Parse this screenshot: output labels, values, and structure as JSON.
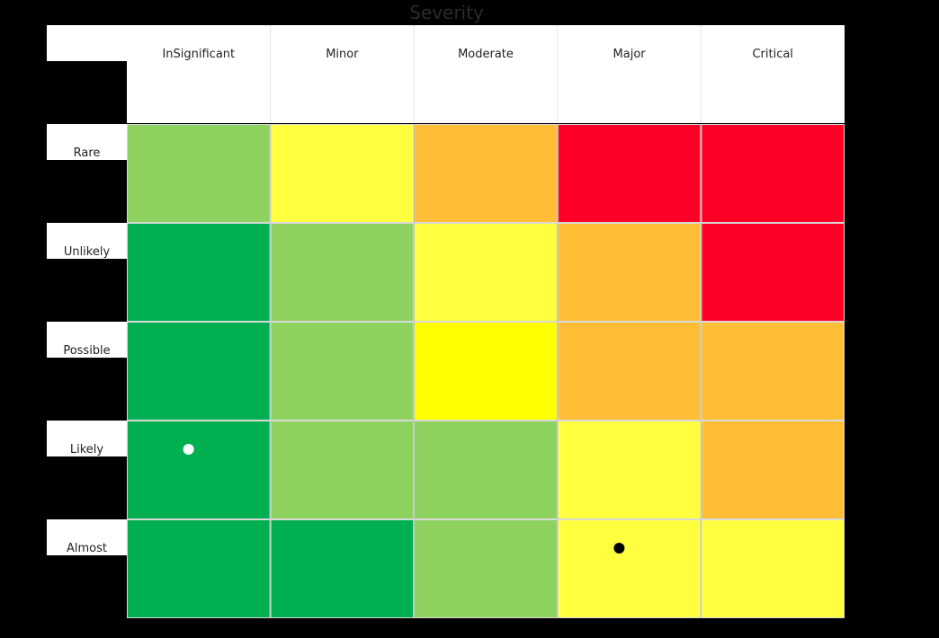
{
  "chart_data": {
    "type": "heatmap",
    "title": "Severity",
    "columns": [
      "InSignificant",
      "Minor",
      "Moderate",
      "Major",
      "Critical"
    ],
    "rows": [
      "Rare",
      "Unlikely",
      "Possible",
      "Likely",
      "Almost"
    ],
    "cell_levels": [
      [
        "low",
        "medium",
        "high",
        "extreme",
        "extreme"
      ],
      [
        "very-low",
        "low",
        "medium",
        "high",
        "extreme"
      ],
      [
        "very-low",
        "low",
        "center",
        "high",
        "high"
      ],
      [
        "very-low",
        "low",
        "low",
        "medium",
        "high"
      ],
      [
        "very-low",
        "very-low",
        "low",
        "medium",
        "medium"
      ]
    ],
    "level_colors": {
      "very-low": "#00b050",
      "low": "#8dd15f",
      "medium": "#ffff40",
      "center": "#ffff00",
      "high": "#ffbe36",
      "extreme": "#ff0027"
    },
    "markers": [
      {
        "row": "Likely",
        "column": "InSignificant",
        "color": "#ffffff"
      },
      {
        "row": "Almost",
        "column": "Major",
        "color": "#000000"
      }
    ],
    "header_background": "#ffffff",
    "label_color": "#222222",
    "page_background": "#000000"
  }
}
